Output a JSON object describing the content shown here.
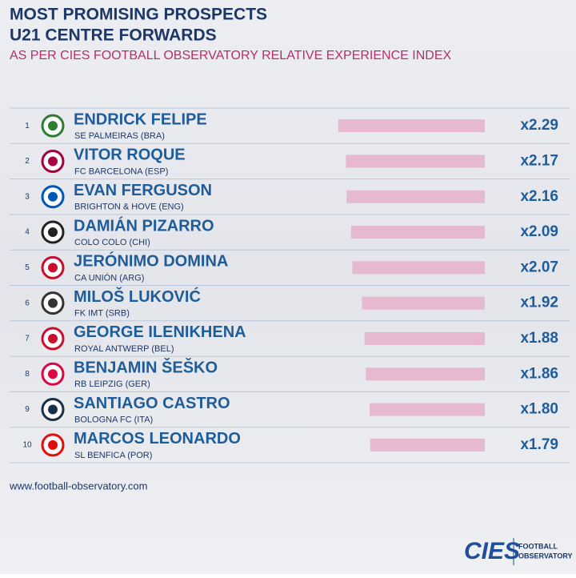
{
  "header": {
    "title_line1": "MOST PROMISING PROSPECTS",
    "title_line2": "U21 CENTRE FORWARDS",
    "subtitle": "AS PER CIES FOOTBALL OBSERVATORY RELATIVE EXPERIENCE INDEX"
  },
  "chart_data": {
    "type": "bar",
    "orientation": "horizontal",
    "color": "#e6b9d1",
    "ranks": [
      "1",
      "2",
      "3",
      "4",
      "5",
      "6",
      "7",
      "8",
      "9",
      "10"
    ],
    "categories": [
      "ENDRICK FELIPE",
      "VITOR ROQUE",
      "EVAN FERGUSON",
      "DAMIÁN PIZARRO",
      "JERÓNIMO DOMINA",
      "MILOŠ LUKOVIĆ",
      "GEORGE ILENIKHENA",
      "BENJAMIN ŠEŠKO",
      "SANTIAGO CASTRO",
      "MARCOS LEONARDO"
    ],
    "clubs": [
      "SE PALMEIRAS (BRA)",
      "FC BARCELONA (ESP)",
      "BRIGHTON & HOVE (ENG)",
      "COLO COLO (CHI)",
      "CA UNIÓN (ARG)",
      "FK IMT (SRB)",
      "ROYAL ANTWERP (BEL)",
      "RB LEIPZIG (GER)",
      "BOLOGNA FC (ITA)",
      "SL BENFICA (POR)"
    ],
    "values": [
      2.29,
      2.17,
      2.16,
      2.09,
      2.07,
      1.92,
      1.88,
      1.86,
      1.8,
      1.79
    ],
    "value_labels": [
      "x2.29",
      "x2.17",
      "x2.16",
      "x2.09",
      "x2.07",
      "x1.92",
      "x1.88",
      "x1.86",
      "x1.80",
      "x1.79"
    ]
  },
  "footer": {
    "website": "www.football-observatory.com",
    "logo": "CIES",
    "logo_text_line1": "FOOTBALL",
    "logo_text_line2": "OBSERVATORY"
  }
}
